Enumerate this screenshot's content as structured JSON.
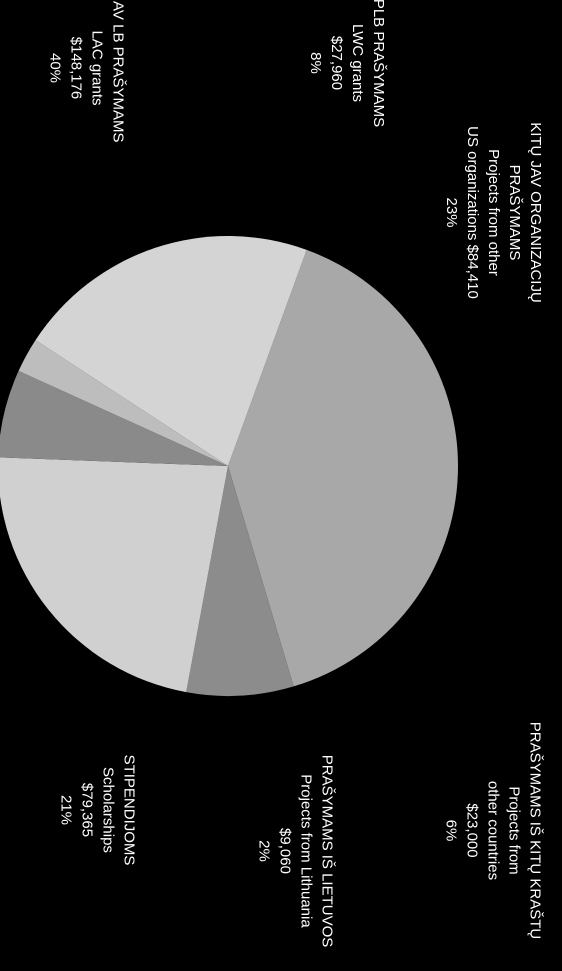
{
  "chart_data": {
    "type": "pie",
    "slices": [
      {
        "lines": [
          "JAV LB PRAŠYMAMS",
          "LAC grants",
          "$148,176",
          "40%"
        ],
        "value": 148176,
        "percent": 40,
        "color": "#a8a8a8"
      },
      {
        "lines": [
          "PLB PRAŠYMAMS",
          "LWC grants",
          "$27,960",
          "8%"
        ],
        "value": 27960,
        "percent": 8,
        "color": "#8c8c8c"
      },
      {
        "lines": [
          "KITŲ JAV ORGANIZACIJŲ",
          "PRAŠYMAMS",
          "Projects from other",
          "US organizations $84,410",
          "23%"
        ],
        "value": 84410,
        "percent": 23,
        "color": "#d0d0d0"
      },
      {
        "lines": [
          "PRAŠYMAMS IŠ KITŲ KRAŠTŲ",
          "Projects from",
          "other countries",
          "$23,000",
          "6%"
        ],
        "value": 23000,
        "percent": 6,
        "color": "#8a8a8a"
      },
      {
        "lines": [
          "PRAŠYMAMS IŠ LIETUVOS",
          "Projects from Lithuania",
          "$9,060",
          "2%"
        ],
        "value": 9060,
        "percent": 2,
        "color": "#bdbdbd"
      },
      {
        "lines": [
          "STIPENDIJOMS",
          "Scholarships",
          "$79,365",
          "21%"
        ],
        "value": 79365,
        "percent": 21,
        "color": "#d4d4d4"
      }
    ]
  }
}
